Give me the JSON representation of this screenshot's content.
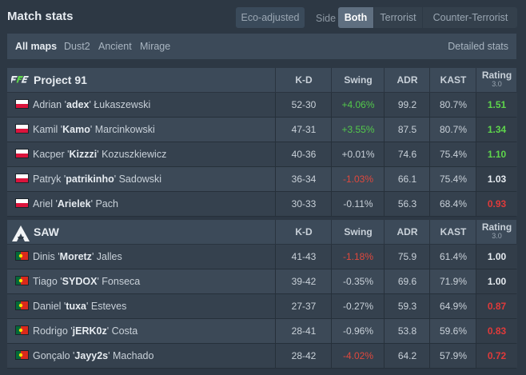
{
  "header": {
    "title": "Match stats",
    "eco_label": "Eco-adjusted",
    "side_label": "Side",
    "side_options": [
      "Both",
      "Terrorist",
      "Counter-Terrorist"
    ],
    "side_selected": "Both"
  },
  "maps": {
    "items": [
      "All maps",
      "Dust2",
      "Ancient",
      "Mirage"
    ],
    "selected": "All maps",
    "detailed_label": "Detailed stats"
  },
  "columns": {
    "kd": "K-D",
    "swing": "Swing",
    "adr": "ADR",
    "kast": "KAST",
    "rating": "Rating",
    "rating_ver": "3.0"
  },
  "colors": {
    "positive": "#53c94b",
    "negative": "#e0483d",
    "rating_good": "#5ed54b",
    "rating_bad": "#e03a3a"
  },
  "teams": [
    {
      "name": "Project 91",
      "logo": "p91-logo",
      "players": [
        {
          "first": "Adrian '",
          "nick": "adex",
          "last": "' Łukaszewski",
          "country": "poland",
          "kd": "52-30",
          "swing": "+4.06%",
          "swing_dir": "pos",
          "adr": "99.2",
          "kast": "80.7%",
          "rating": "1.51",
          "rating_dir": "good"
        },
        {
          "first": "Kamil '",
          "nick": "Kamo",
          "last": "' Marcinkowski",
          "country": "poland",
          "kd": "47-31",
          "swing": "+3.55%",
          "swing_dir": "pos",
          "adr": "87.5",
          "kast": "80.7%",
          "rating": "1.34",
          "rating_dir": "good"
        },
        {
          "first": "Kacper '",
          "nick": "Kizzzi",
          "last": "' Kozuszkiewicz",
          "country": "poland",
          "kd": "40-36",
          "swing": "+0.01%",
          "swing_dir": "neu",
          "adr": "74.6",
          "kast": "75.4%",
          "rating": "1.10",
          "rating_dir": "good"
        },
        {
          "first": "Patryk '",
          "nick": "patrikinho",
          "last": "' Sadowski",
          "country": "poland",
          "kd": "36-34",
          "swing": "-1.03%",
          "swing_dir": "neg",
          "adr": "66.1",
          "kast": "75.4%",
          "rating": "1.03",
          "rating_dir": "neu"
        },
        {
          "first": "Ariel '",
          "nick": "Arielek",
          "last": "' Pach",
          "country": "poland",
          "kd": "30-33",
          "swing": "-0.11%",
          "swing_dir": "neu",
          "adr": "56.3",
          "kast": "68.4%",
          "rating": "0.93",
          "rating_dir": "bad"
        }
      ]
    },
    {
      "name": "SAW",
      "logo": "saw-logo",
      "players": [
        {
          "first": "Dinis '",
          "nick": "Moretz",
          "last": "' Jalles",
          "country": "portugal",
          "kd": "41-43",
          "swing": "-1.18%",
          "swing_dir": "neg",
          "adr": "75.9",
          "kast": "61.4%",
          "rating": "1.00",
          "rating_dir": "neu"
        },
        {
          "first": "Tiago '",
          "nick": "SYDOX",
          "last": "' Fonseca",
          "country": "portugal",
          "kd": "39-42",
          "swing": "-0.35%",
          "swing_dir": "neu",
          "adr": "69.6",
          "kast": "71.9%",
          "rating": "1.00",
          "rating_dir": "neu"
        },
        {
          "first": "Daniel '",
          "nick": "tuxa",
          "last": "' Esteves",
          "country": "portugal",
          "kd": "27-37",
          "swing": "-0.27%",
          "swing_dir": "neu",
          "adr": "59.3",
          "kast": "64.9%",
          "rating": "0.87",
          "rating_dir": "bad"
        },
        {
          "first": "Rodrigo '",
          "nick": "jERK0z",
          "last": "' Costa",
          "country": "portugal",
          "kd": "28-41",
          "swing": "-0.96%",
          "swing_dir": "neu",
          "adr": "53.8",
          "kast": "59.6%",
          "rating": "0.83",
          "rating_dir": "bad"
        },
        {
          "first": "Gonçalo '",
          "nick": "Jayy2s",
          "last": "' Machado",
          "country": "portugal",
          "kd": "28-42",
          "swing": "-4.02%",
          "swing_dir": "neg",
          "adr": "64.2",
          "kast": "57.9%",
          "rating": "0.72",
          "rating_dir": "bad"
        }
      ]
    }
  ]
}
